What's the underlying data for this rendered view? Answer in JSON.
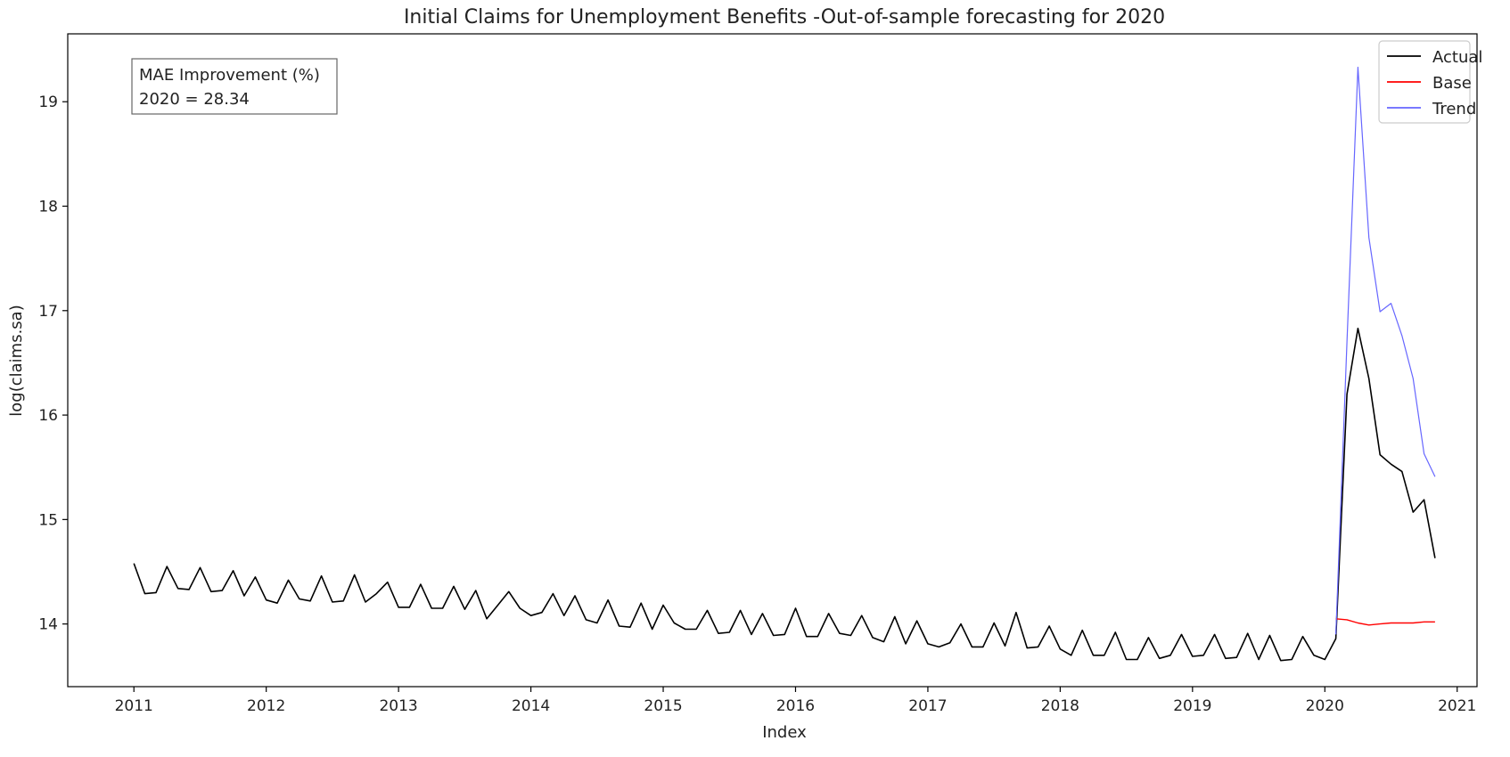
{
  "chart_data": {
    "type": "line",
    "title": "Initial Claims for Unemployment Benefits -Out-of-sample forecasting for 2020",
    "xlabel": "Index",
    "ylabel": "log(claims.sa)",
    "xlim": [
      2010.5,
      2021.15
    ],
    "ylim": [
      13.4,
      19.65
    ],
    "x_ticks": [
      2011,
      2012,
      2013,
      2014,
      2015,
      2016,
      2017,
      2018,
      2019,
      2020,
      2021
    ],
    "x_tick_labels": [
      "2011",
      "2012",
      "2013",
      "2014",
      "2015",
      "2016",
      "2017",
      "2018",
      "2019",
      "2020",
      "2021"
    ],
    "y_ticks": [
      14,
      15,
      16,
      17,
      18,
      19
    ],
    "y_tick_labels": [
      "14",
      "15",
      "16",
      "17",
      "18",
      "19"
    ],
    "grid": false,
    "legend_position": "top-right",
    "annotation": {
      "line1": "MAE Improvement (%)",
      "line2": "2020 = 28.34"
    },
    "series": [
      {
        "name": "Actual",
        "color": "#000000",
        "x": [
          2011.0,
          2011.083,
          2011.167,
          2011.25,
          2011.333,
          2011.417,
          2011.5,
          2011.583,
          2011.667,
          2011.75,
          2011.833,
          2011.917,
          2012.0,
          2012.083,
          2012.167,
          2012.25,
          2012.333,
          2012.417,
          2012.5,
          2012.583,
          2012.667,
          2012.75,
          2012.833,
          2012.917,
          2013.0,
          2013.083,
          2013.167,
          2013.25,
          2013.333,
          2013.417,
          2013.5,
          2013.583,
          2013.667,
          2013.75,
          2013.833,
          2013.917,
          2014.0,
          2014.083,
          2014.167,
          2014.25,
          2014.333,
          2014.417,
          2014.5,
          2014.583,
          2014.667,
          2014.75,
          2014.833,
          2014.917,
          2015.0,
          2015.083,
          2015.167,
          2015.25,
          2015.333,
          2015.417,
          2015.5,
          2015.583,
          2015.667,
          2015.75,
          2015.833,
          2015.917,
          2016.0,
          2016.083,
          2016.167,
          2016.25,
          2016.333,
          2016.417,
          2016.5,
          2016.583,
          2016.667,
          2016.75,
          2016.833,
          2016.917,
          2017.0,
          2017.083,
          2017.167,
          2017.25,
          2017.333,
          2017.417,
          2017.5,
          2017.583,
          2017.667,
          2017.75,
          2017.833,
          2017.917,
          2018.0,
          2018.083,
          2018.167,
          2018.25,
          2018.333,
          2018.417,
          2018.5,
          2018.583,
          2018.667,
          2018.75,
          2018.833,
          2018.917,
          2019.0,
          2019.083,
          2019.167,
          2019.25,
          2019.333,
          2019.417,
          2019.5,
          2019.583,
          2019.667,
          2019.75,
          2019.833,
          2019.917,
          2020.0,
          2020.083,
          2020.167,
          2020.25,
          2020.333,
          2020.417,
          2020.5,
          2020.583,
          2020.667,
          2020.75,
          2020.833
        ],
        "values": [
          14.58,
          14.29,
          14.3,
          14.55,
          14.34,
          14.33,
          14.54,
          14.31,
          14.32,
          14.51,
          14.27,
          14.45,
          14.23,
          14.2,
          14.42,
          14.24,
          14.22,
          14.46,
          14.21,
          14.22,
          14.47,
          14.21,
          14.29,
          14.4,
          14.16,
          14.16,
          14.38,
          14.15,
          14.15,
          14.36,
          14.14,
          14.32,
          14.05,
          14.18,
          14.31,
          14.15,
          14.08,
          14.11,
          14.29,
          14.08,
          14.27,
          14.04,
          14.01,
          14.23,
          13.98,
          13.97,
          14.2,
          13.95,
          14.18,
          14.01,
          13.95,
          13.95,
          14.13,
          13.91,
          13.92,
          14.13,
          13.9,
          14.1,
          13.89,
          13.9,
          14.15,
          13.88,
          13.88,
          14.1,
          13.91,
          13.89,
          14.08,
          13.87,
          13.83,
          14.07,
          13.81,
          14.03,
          13.81,
          13.78,
          13.82,
          14.0,
          13.78,
          13.78,
          14.01,
          13.79,
          14.11,
          13.77,
          13.78,
          13.98,
          13.76,
          13.7,
          13.94,
          13.7,
          13.7,
          13.92,
          13.66,
          13.66,
          13.87,
          13.67,
          13.7,
          13.9,
          13.69,
          13.7,
          13.9,
          13.67,
          13.68,
          13.91,
          13.66,
          13.89,
          13.65,
          13.66,
          13.88,
          13.7,
          13.66,
          13.86,
          16.2,
          16.83,
          16.35,
          15.62,
          15.53,
          15.46,
          15.07,
          15.19,
          14.63
        ]
      },
      {
        "name": "Base",
        "color": "#ff0000",
        "x": [
          2020.083,
          2020.167,
          2020.25,
          2020.333,
          2020.417,
          2020.5,
          2020.583,
          2020.667,
          2020.75,
          2020.833
        ],
        "values": [
          14.05,
          14.04,
          14.01,
          13.99,
          14.0,
          14.01,
          14.01,
          14.01,
          14.02,
          14.02
        ]
      },
      {
        "name": "Trend",
        "color": "#6666ff",
        "x": [
          2020.083,
          2020.167,
          2020.25,
          2020.333,
          2020.417,
          2020.5,
          2020.583,
          2020.667,
          2020.75,
          2020.833
        ],
        "values": [
          13.9,
          16.7,
          19.33,
          17.7,
          16.99,
          17.07,
          16.76,
          16.35,
          15.63,
          15.41
        ]
      }
    ]
  }
}
